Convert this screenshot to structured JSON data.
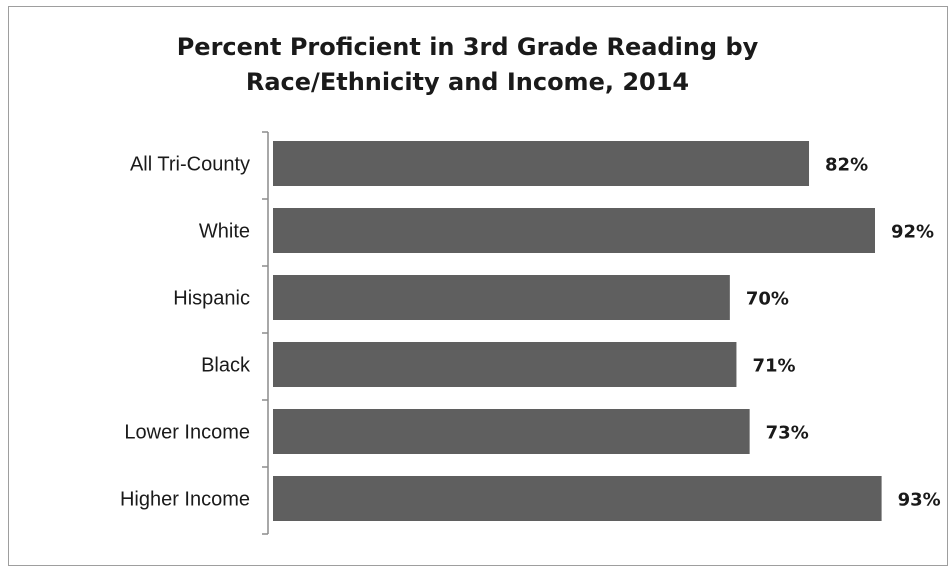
{
  "chart_data": {
    "type": "bar",
    "orientation": "horizontal",
    "title_lines": [
      "Percent Proficient in 3rd Grade Reading by",
      "Race/Ethnicity and Income, 2014"
    ],
    "categories": [
      "All Tri-County",
      "White",
      "Hispanic",
      "Black",
      "Lower Income",
      "Higher Income"
    ],
    "values": [
      82,
      92,
      70,
      71,
      73,
      93
    ],
    "value_labels": [
      "82%",
      "92%",
      "70%",
      "71%",
      "73%",
      "93%"
    ],
    "xlim": [
      0,
      100
    ],
    "bar_color": "#5f5f5f",
    "grid": false,
    "legend": "none"
  }
}
